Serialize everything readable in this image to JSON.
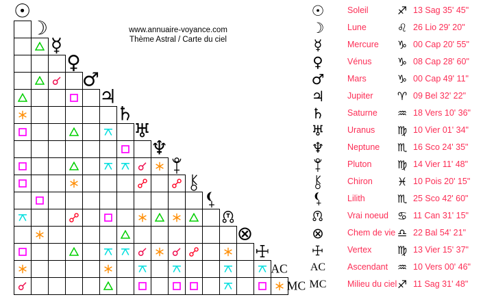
{
  "header": {
    "site": "www.annuaire-voyance.com",
    "subtitle": "Thème Astral / Carte du ciel"
  },
  "colors": {
    "background": "#ffffff",
    "text": "#000000",
    "legend_text": "#fc2d55",
    "grid_border": "#000000"
  },
  "aspect_types": {
    "conjunction": {
      "label": "conjonction",
      "color": "#ef1050"
    },
    "opposition": {
      "label": "opposition",
      "color": "#ff0022"
    },
    "trine": {
      "label": "trigone",
      "color": "#00cf00"
    },
    "square": {
      "label": "carré",
      "color": "#ff00ff"
    },
    "sextile": {
      "label": "sextile",
      "color": "#ff8c00"
    },
    "quincunx": {
      "label": "quinconce",
      "color": "#00dede"
    }
  },
  "planets": [
    {
      "name": "Soleil",
      "glyph": "☉",
      "glyph_style": "symbol",
      "sign": "♐",
      "position": "13 Sag 35' 45\""
    },
    {
      "name": "Lune",
      "glyph": "☽",
      "glyph_style": "symbol",
      "sign": "♌",
      "position": "26 Lio 29' 20\""
    },
    {
      "name": "Mercure",
      "glyph": "☿",
      "glyph_style": "symbol",
      "sign": "♑",
      "position": "00 Cap 20' 55\""
    },
    {
      "name": "Vénus",
      "glyph": "♀",
      "glyph_style": "symbol",
      "sign": "♑",
      "position": "08 Cap 28' 60\""
    },
    {
      "name": "Mars",
      "glyph": "♂",
      "glyph_style": "symbol",
      "sign": "♑",
      "position": "00 Cap 49' 11\""
    },
    {
      "name": "Jupiter",
      "glyph": "♃",
      "glyph_style": "symbol",
      "sign": "♈",
      "position": "09 Bel 32' 22\""
    },
    {
      "name": "Saturne",
      "glyph": "♄",
      "glyph_style": "symbol",
      "sign": "♒",
      "position": "18 Vers 10' 36\""
    },
    {
      "name": "Uranus",
      "glyph": "♅",
      "glyph_style": "symbol",
      "sign": "♍",
      "position": "10 Vier 01' 34\""
    },
    {
      "name": "Neptune",
      "glyph": "♆",
      "glyph_style": "symbol",
      "sign": "♏",
      "position": "16 Sco 24' 35\""
    },
    {
      "name": "Pluton",
      "glyph": "svg:pluto",
      "glyph_style": "svg",
      "sign": "♍",
      "position": "14 Vier 11' 48\""
    },
    {
      "name": "Chiron",
      "glyph": "svg:chiron",
      "glyph_style": "svg",
      "sign": "♓",
      "position": "10 Pois 20' 15\""
    },
    {
      "name": "Lilith",
      "glyph": "svg:lilith",
      "glyph_style": "svg",
      "sign": "♏",
      "position": "25 Sco 42' 60\""
    },
    {
      "name": "Vrai noeud",
      "glyph": "svg:node",
      "glyph_style": "svg",
      "sign": "♋",
      "position": "11 Can 31' 15\""
    },
    {
      "name": "Chem de vie",
      "glyph": "⊗",
      "glyph_style": "symbol",
      "sign": "♎",
      "position": "22 Bal 54' 21\""
    },
    {
      "name": "Vertex",
      "glyph": "svg:vertex",
      "glyph_style": "svg",
      "sign": "♍",
      "position": "13 Vier 15' 37\""
    },
    {
      "name": "Ascendant",
      "glyph": "AC",
      "glyph_style": "serif",
      "sign": "♒",
      "position": "10 Vers 00' 46\""
    },
    {
      "name": "Milieu du ciel",
      "glyph": "MC",
      "glyph_style": "serif",
      "sign": "♐",
      "position": "11 Sag 31' 48\""
    }
  ],
  "aspects": [
    {
      "row": "Mercure",
      "col": "Lune",
      "type": "trine"
    },
    {
      "row": "Mars",
      "col": "Lune",
      "type": "trine"
    },
    {
      "row": "Mars",
      "col": "Mercure",
      "type": "conjunction"
    },
    {
      "row": "Jupiter",
      "col": "Soleil",
      "type": "trine"
    },
    {
      "row": "Jupiter",
      "col": "Vénus",
      "type": "square"
    },
    {
      "row": "Saturne",
      "col": "Soleil",
      "type": "sextile"
    },
    {
      "row": "Uranus",
      "col": "Soleil",
      "type": "square"
    },
    {
      "row": "Uranus",
      "col": "Vénus",
      "type": "trine"
    },
    {
      "row": "Uranus",
      "col": "Jupiter",
      "type": "quincunx"
    },
    {
      "row": "Neptune",
      "col": "Saturne",
      "type": "square"
    },
    {
      "row": "Pluton",
      "col": "Soleil",
      "type": "square"
    },
    {
      "row": "Pluton",
      "col": "Vénus",
      "type": "trine"
    },
    {
      "row": "Pluton",
      "col": "Jupiter",
      "type": "quincunx"
    },
    {
      "row": "Pluton",
      "col": "Saturne",
      "type": "quincunx"
    },
    {
      "row": "Pluton",
      "col": "Uranus",
      "type": "conjunction"
    },
    {
      "row": "Pluton",
      "col": "Neptune",
      "type": "sextile"
    },
    {
      "row": "Chiron",
      "col": "Soleil",
      "type": "square"
    },
    {
      "row": "Chiron",
      "col": "Vénus",
      "type": "sextile"
    },
    {
      "row": "Chiron",
      "col": "Uranus",
      "type": "opposition"
    },
    {
      "row": "Chiron",
      "col": "Pluton",
      "type": "opposition"
    },
    {
      "row": "Lilith",
      "col": "Lune",
      "type": "square"
    },
    {
      "row": "Vrai noeud",
      "col": "Soleil",
      "type": "quincunx"
    },
    {
      "row": "Vrai noeud",
      "col": "Vénus",
      "type": "opposition"
    },
    {
      "row": "Vrai noeud",
      "col": "Jupiter",
      "type": "square"
    },
    {
      "row": "Vrai noeud",
      "col": "Uranus",
      "type": "sextile"
    },
    {
      "row": "Vrai noeud",
      "col": "Neptune",
      "type": "trine"
    },
    {
      "row": "Vrai noeud",
      "col": "Pluton",
      "type": "sextile"
    },
    {
      "row": "Vrai noeud",
      "col": "Chiron",
      "type": "trine"
    },
    {
      "row": "Chem de vie",
      "col": "Lune",
      "type": "sextile"
    },
    {
      "row": "Chem de vie",
      "col": "Saturne",
      "type": "trine"
    },
    {
      "row": "Vertex",
      "col": "Soleil",
      "type": "square"
    },
    {
      "row": "Vertex",
      "col": "Vénus",
      "type": "trine"
    },
    {
      "row": "Vertex",
      "col": "Jupiter",
      "type": "quincunx"
    },
    {
      "row": "Vertex",
      "col": "Saturne",
      "type": "quincunx"
    },
    {
      "row": "Vertex",
      "col": "Uranus",
      "type": "conjunction"
    },
    {
      "row": "Vertex",
      "col": "Neptune",
      "type": "sextile"
    },
    {
      "row": "Vertex",
      "col": "Pluton",
      "type": "conjunction"
    },
    {
      "row": "Vertex",
      "col": "Chiron",
      "type": "opposition"
    },
    {
      "row": "Vertex",
      "col": "Vrai noeud",
      "type": "sextile"
    },
    {
      "row": "Ascendant",
      "col": "Soleil",
      "type": "sextile"
    },
    {
      "row": "Ascendant",
      "col": "Jupiter",
      "type": "sextile"
    },
    {
      "row": "Ascendant",
      "col": "Uranus",
      "type": "quincunx"
    },
    {
      "row": "Ascendant",
      "col": "Pluton",
      "type": "quincunx"
    },
    {
      "row": "Ascendant",
      "col": "Vrai noeud",
      "type": "quincunx"
    },
    {
      "row": "Ascendant",
      "col": "Vertex",
      "type": "quincunx"
    },
    {
      "row": "Milieu du ciel",
      "col": "Soleil",
      "type": "conjunction"
    },
    {
      "row": "Milieu du ciel",
      "col": "Jupiter",
      "type": "trine"
    },
    {
      "row": "Milieu du ciel",
      "col": "Uranus",
      "type": "square"
    },
    {
      "row": "Milieu du ciel",
      "col": "Pluton",
      "type": "square"
    },
    {
      "row": "Milieu du ciel",
      "col": "Chiron",
      "type": "square"
    },
    {
      "row": "Milieu du ciel",
      "col": "Vrai noeud",
      "type": "quincunx"
    },
    {
      "row": "Milieu du ciel",
      "col": "Vertex",
      "type": "square"
    },
    {
      "row": "Milieu du ciel",
      "col": "Ascendant",
      "type": "sextile"
    }
  ]
}
